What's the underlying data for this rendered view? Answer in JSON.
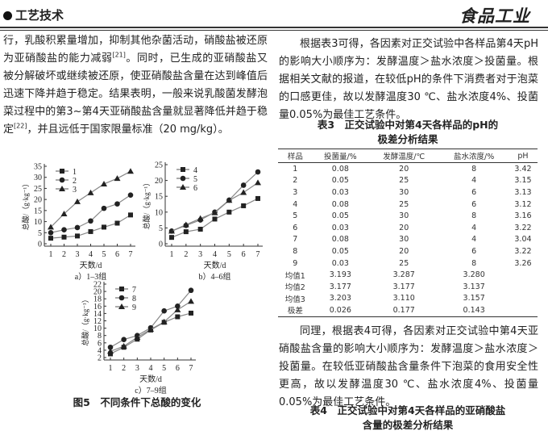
{
  "header": {
    "section": "工艺技术",
    "journal_logo": "食品工业"
  },
  "left_text": {
    "p1_a": "行，乳酸积累量增加，抑制其他杂菌活动，硝酸盐被还原为亚硝酸盐的能力减弱",
    "p1_ref1": "[21]",
    "p1_b": "。同时，已生成的亚硝酸盐又被分解破坏或继续被还原，使亚硝酸盐含量在达到峰值后迅速下降并趋于稳定。结果表明，一般来说乳酸菌发酵泡菜过程中的第3~第4天亚硝酸盐含量就显著降低并趋于稳定",
    "p1_ref2": "[22]",
    "p1_c": "，并且远低于国家限量标准（20 mg/kg）。"
  },
  "figure_caption": "图5　不同条件下总酸的变化",
  "right_text": {
    "p1": "根据表3可得，各因素对正交试验中各样品第4天pH的影响大小顺序为：发酵温度＞盐水浓度＞投菌量。根据相关文献的报道，在较低pH的条件下消费者对于泡菜的口感更佳，故以发酵温度30 ℃、盐水浓度4%、投菌量0.05%为最佳工艺条件。",
    "p2": "同理，根据表4可得，各因素对正交试验中第4天亚硝酸盐含量的影响大小顺序为：发酵温度＞盐水浓度＞投菌量。在较低亚硝酸盐含量条件下泡菜的食用安全性更高，故以发酵温度30 ℃、盐水浓度4%、投菌量0.05%为最佳工艺条件。"
  },
  "table3": {
    "caption_line1": "表3　正交试验中对第4天各样品的pH的",
    "caption_line2": "极差分析结果",
    "headers": [
      "样品",
      "投菌量/%",
      "发酵温度/℃",
      "盐水浓度/%",
      "pH"
    ],
    "rows": [
      [
        "1",
        "0.08",
        "20",
        "8",
        "3.42"
      ],
      [
        "2",
        "0.05",
        "25",
        "4",
        "3.15"
      ],
      [
        "3",
        "0.03",
        "30",
        "6",
        "3.13"
      ],
      [
        "4",
        "0.08",
        "25",
        "6",
        "3.12"
      ],
      [
        "5",
        "0.05",
        "30",
        "8",
        "3.16"
      ],
      [
        "6",
        "0.03",
        "20",
        "4",
        "3.22"
      ],
      [
        "7",
        "0.08",
        "30",
        "4",
        "3.04"
      ],
      [
        "8",
        "0.05",
        "20",
        "6",
        "3.22"
      ],
      [
        "9",
        "0.03",
        "25",
        "8",
        "3.26"
      ],
      [
        "均值1",
        "3.193",
        "3.287",
        "3.280",
        ""
      ],
      [
        "均值2",
        "3.177",
        "3.177",
        "3.137",
        ""
      ],
      [
        "均值3",
        "3.203",
        "3.110",
        "3.157",
        ""
      ],
      [
        "极差",
        "0.026",
        "0.177",
        "0.143",
        ""
      ]
    ]
  },
  "table4": {
    "caption_line1": "表4　正交试验中对第4天各样品的亚硝酸盐",
    "caption_line2": "含量的极差分析结果"
  },
  "chart_data": [
    {
      "type": "line",
      "subtitle": "a）1–3组",
      "xlabel": "天数/d",
      "ylabel": "总酸/（g·kg⁻¹）",
      "x": [
        1,
        2,
        3,
        4,
        5,
        6,
        7
      ],
      "ylim": [
        0,
        35
      ],
      "yticks": [
        0,
        5,
        10,
        15,
        20,
        25,
        30,
        35
      ],
      "legend": "top-left",
      "series": [
        {
          "name": "1",
          "marker": "square",
          "values": [
            2.5,
            3,
            3.5,
            5.5,
            7.5,
            9.3,
            13
          ]
        },
        {
          "name": "2",
          "marker": "circle",
          "values": [
            5,
            6.3,
            7.3,
            10.3,
            16,
            18,
            22
          ]
        },
        {
          "name": "3",
          "marker": "triangle",
          "values": [
            7.5,
            13.5,
            19,
            23,
            27,
            29.5,
            32.7
          ]
        }
      ]
    },
    {
      "type": "line",
      "subtitle": "b）4–6组",
      "xlabel": "天数/d",
      "ylabel": "总酸/（g·kg⁻¹）",
      "x": [
        1,
        2,
        3,
        4,
        5,
        6,
        7
      ],
      "ylim": [
        0,
        25
      ],
      "yticks": [
        0,
        5,
        10,
        15,
        20,
        25
      ],
      "legend": "top-left",
      "series": [
        {
          "name": "4",
          "marker": "square",
          "values": [
            2,
            3.8,
            4.6,
            7.8,
            10,
            12,
            14.3
          ]
        },
        {
          "name": "5",
          "marker": "circle",
          "values": [
            4,
            5.8,
            7.5,
            10,
            13.8,
            18.5,
            22.7
          ]
        },
        {
          "name": "6",
          "marker": "triangle",
          "values": [
            4,
            6,
            8,
            9.8,
            13.7,
            16.2,
            19.3
          ]
        }
      ]
    },
    {
      "type": "line",
      "subtitle": "c）7–9组",
      "xlabel": "天数/d",
      "ylabel": "总酸/（g·kg⁻¹）",
      "x": [
        1,
        2,
        3,
        4,
        5,
        6,
        7
      ],
      "ylim": [
        2,
        22
      ],
      "yticks": [
        2,
        4,
        6,
        8,
        10,
        12,
        14,
        16,
        18,
        20,
        22
      ],
      "legend": "top-left",
      "series": [
        {
          "name": "7",
          "marker": "square",
          "values": [
            3,
            4.8,
            7,
            9.5,
            11.6,
            13.1,
            14.1
          ]
        },
        {
          "name": "8",
          "marker": "circle",
          "values": [
            4.8,
            6.9,
            8,
            10.1,
            14.7,
            16,
            20.3
          ]
        },
        {
          "name": "9",
          "marker": "triangle",
          "values": [
            3.7,
            5.1,
            7.5,
            9.7,
            11.7,
            15,
            17.3
          ]
        }
      ]
    }
  ]
}
